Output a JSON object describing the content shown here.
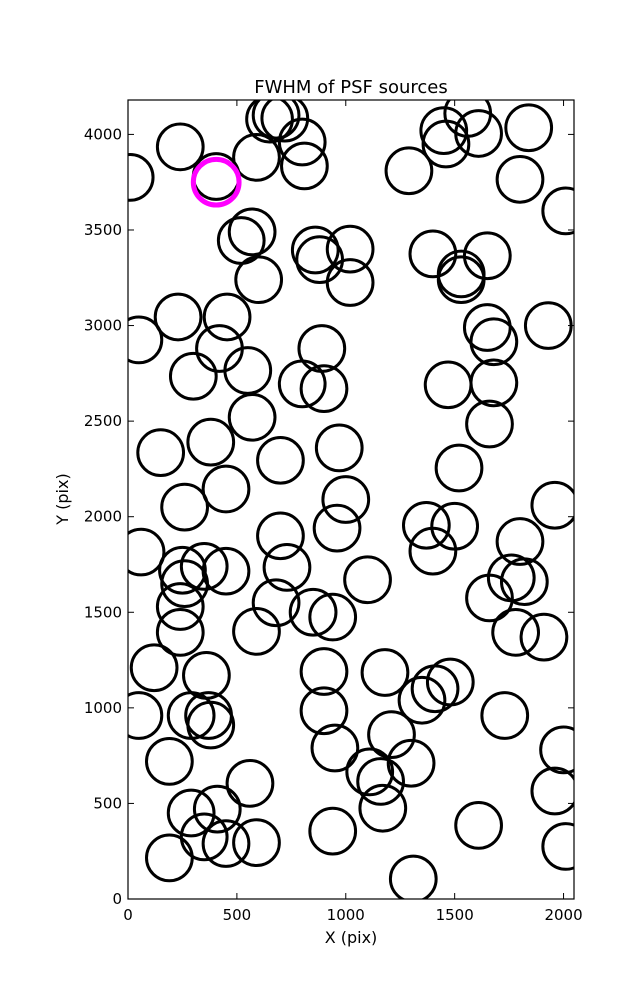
{
  "chart_data": {
    "type": "scatter",
    "title": "FWHM of PSF sources",
    "xlabel": "X (pix)",
    "ylabel": "Y (pix)",
    "xlim": [
      0,
      2048
    ],
    "ylim": [
      0,
      4180
    ],
    "xticks": [
      0,
      500,
      1000,
      1500,
      2000
    ],
    "yticks": [
      0,
      500,
      1000,
      1500,
      2000,
      2500,
      3000,
      3500,
      4000
    ],
    "grid": false,
    "legend": "none",
    "marker": "open-circle",
    "marker_radius_pix": 105,
    "colors": {
      "default": "#000000",
      "highlight": "#ff00ff"
    },
    "highlight": [
      {
        "x": 405,
        "y": 3750
      }
    ],
    "points": [
      {
        "x": 10,
        "y": 3775
      },
      {
        "x": 240,
        "y": 3935
      },
      {
        "x": 405,
        "y": 3780
      },
      {
        "x": 590,
        "y": 3880
      },
      {
        "x": 650,
        "y": 4080
      },
      {
        "x": 680,
        "y": 4100
      },
      {
        "x": 720,
        "y": 4085
      },
      {
        "x": 800,
        "y": 3960
      },
      {
        "x": 810,
        "y": 3835
      },
      {
        "x": 1290,
        "y": 3810
      },
      {
        "x": 1450,
        "y": 4020
      },
      {
        "x": 1460,
        "y": 3950
      },
      {
        "x": 1560,
        "y": 4110
      },
      {
        "x": 1610,
        "y": 4005
      },
      {
        "x": 1840,
        "y": 4035
      },
      {
        "x": 1800,
        "y": 3765
      },
      {
        "x": 2010,
        "y": 3600
      },
      {
        "x": 520,
        "y": 3445
      },
      {
        "x": 570,
        "y": 3490
      },
      {
        "x": 600,
        "y": 3240
      },
      {
        "x": 860,
        "y": 3395
      },
      {
        "x": 880,
        "y": 3345
      },
      {
        "x": 1020,
        "y": 3400
      },
      {
        "x": 1020,
        "y": 3225
      },
      {
        "x": 1400,
        "y": 3375
      },
      {
        "x": 1530,
        "y": 3270
      },
      {
        "x": 1530,
        "y": 3240
      },
      {
        "x": 1650,
        "y": 3365
      },
      {
        "x": 50,
        "y": 2925
      },
      {
        "x": 230,
        "y": 3045
      },
      {
        "x": 455,
        "y": 3045
      },
      {
        "x": 420,
        "y": 2880
      },
      {
        "x": 300,
        "y": 2735
      },
      {
        "x": 550,
        "y": 2765
      },
      {
        "x": 890,
        "y": 2880
      },
      {
        "x": 800,
        "y": 2695
      },
      {
        "x": 900,
        "y": 2670
      },
      {
        "x": 1470,
        "y": 2690
      },
      {
        "x": 1650,
        "y": 2990
      },
      {
        "x": 1680,
        "y": 2915
      },
      {
        "x": 1680,
        "y": 2700
      },
      {
        "x": 1660,
        "y": 2485
      },
      {
        "x": 1930,
        "y": 3000
      },
      {
        "x": 570,
        "y": 2520
      },
      {
        "x": 380,
        "y": 2390
      },
      {
        "x": 150,
        "y": 2335
      },
      {
        "x": 700,
        "y": 2295
      },
      {
        "x": 970,
        "y": 2360
      },
      {
        "x": 1520,
        "y": 2255
      },
      {
        "x": 450,
        "y": 2145
      },
      {
        "x": 260,
        "y": 2050
      },
      {
        "x": 1000,
        "y": 2090
      },
      {
        "x": 1960,
        "y": 2060
      },
      {
        "x": 60,
        "y": 1815
      },
      {
        "x": 700,
        "y": 1900
      },
      {
        "x": 730,
        "y": 1735
      },
      {
        "x": 960,
        "y": 1940
      },
      {
        "x": 1370,
        "y": 1955
      },
      {
        "x": 1500,
        "y": 1950
      },
      {
        "x": 1400,
        "y": 1820
      },
      {
        "x": 1800,
        "y": 1870
      },
      {
        "x": 250,
        "y": 1720
      },
      {
        "x": 350,
        "y": 1740
      },
      {
        "x": 450,
        "y": 1715
      },
      {
        "x": 260,
        "y": 1650
      },
      {
        "x": 240,
        "y": 1530
      },
      {
        "x": 680,
        "y": 1550
      },
      {
        "x": 850,
        "y": 1500
      },
      {
        "x": 940,
        "y": 1475
      },
      {
        "x": 1100,
        "y": 1670
      },
      {
        "x": 1660,
        "y": 1575
      },
      {
        "x": 1760,
        "y": 1680
      },
      {
        "x": 1820,
        "y": 1660
      },
      {
        "x": 240,
        "y": 1395
      },
      {
        "x": 590,
        "y": 1400
      },
      {
        "x": 1780,
        "y": 1395
      },
      {
        "x": 1910,
        "y": 1370
      },
      {
        "x": 120,
        "y": 1210
      },
      {
        "x": 360,
        "y": 1170
      },
      {
        "x": 900,
        "y": 1190
      },
      {
        "x": 1180,
        "y": 1185
      },
      {
        "x": 50,
        "y": 960
      },
      {
        "x": 290,
        "y": 960
      },
      {
        "x": 370,
        "y": 960
      },
      {
        "x": 380,
        "y": 910
      },
      {
        "x": 900,
        "y": 985
      },
      {
        "x": 1350,
        "y": 1040
      },
      {
        "x": 1410,
        "y": 1100
      },
      {
        "x": 1480,
        "y": 1135
      },
      {
        "x": 1730,
        "y": 960
      },
      {
        "x": 190,
        "y": 720
      },
      {
        "x": 950,
        "y": 790
      },
      {
        "x": 1210,
        "y": 860
      },
      {
        "x": 1300,
        "y": 710
      },
      {
        "x": 1110,
        "y": 665
      },
      {
        "x": 1160,
        "y": 615
      },
      {
        "x": 560,
        "y": 605
      },
      {
        "x": 2000,
        "y": 780
      },
      {
        "x": 1960,
        "y": 565
      },
      {
        "x": 290,
        "y": 450
      },
      {
        "x": 410,
        "y": 470
      },
      {
        "x": 350,
        "y": 325
      },
      {
        "x": 450,
        "y": 290
      },
      {
        "x": 590,
        "y": 295
      },
      {
        "x": 940,
        "y": 355
      },
      {
        "x": 1170,
        "y": 475
      },
      {
        "x": 1610,
        "y": 385
      },
      {
        "x": 190,
        "y": 215
      },
      {
        "x": 1310,
        "y": 105
      },
      {
        "x": 2010,
        "y": 275
      }
    ]
  }
}
